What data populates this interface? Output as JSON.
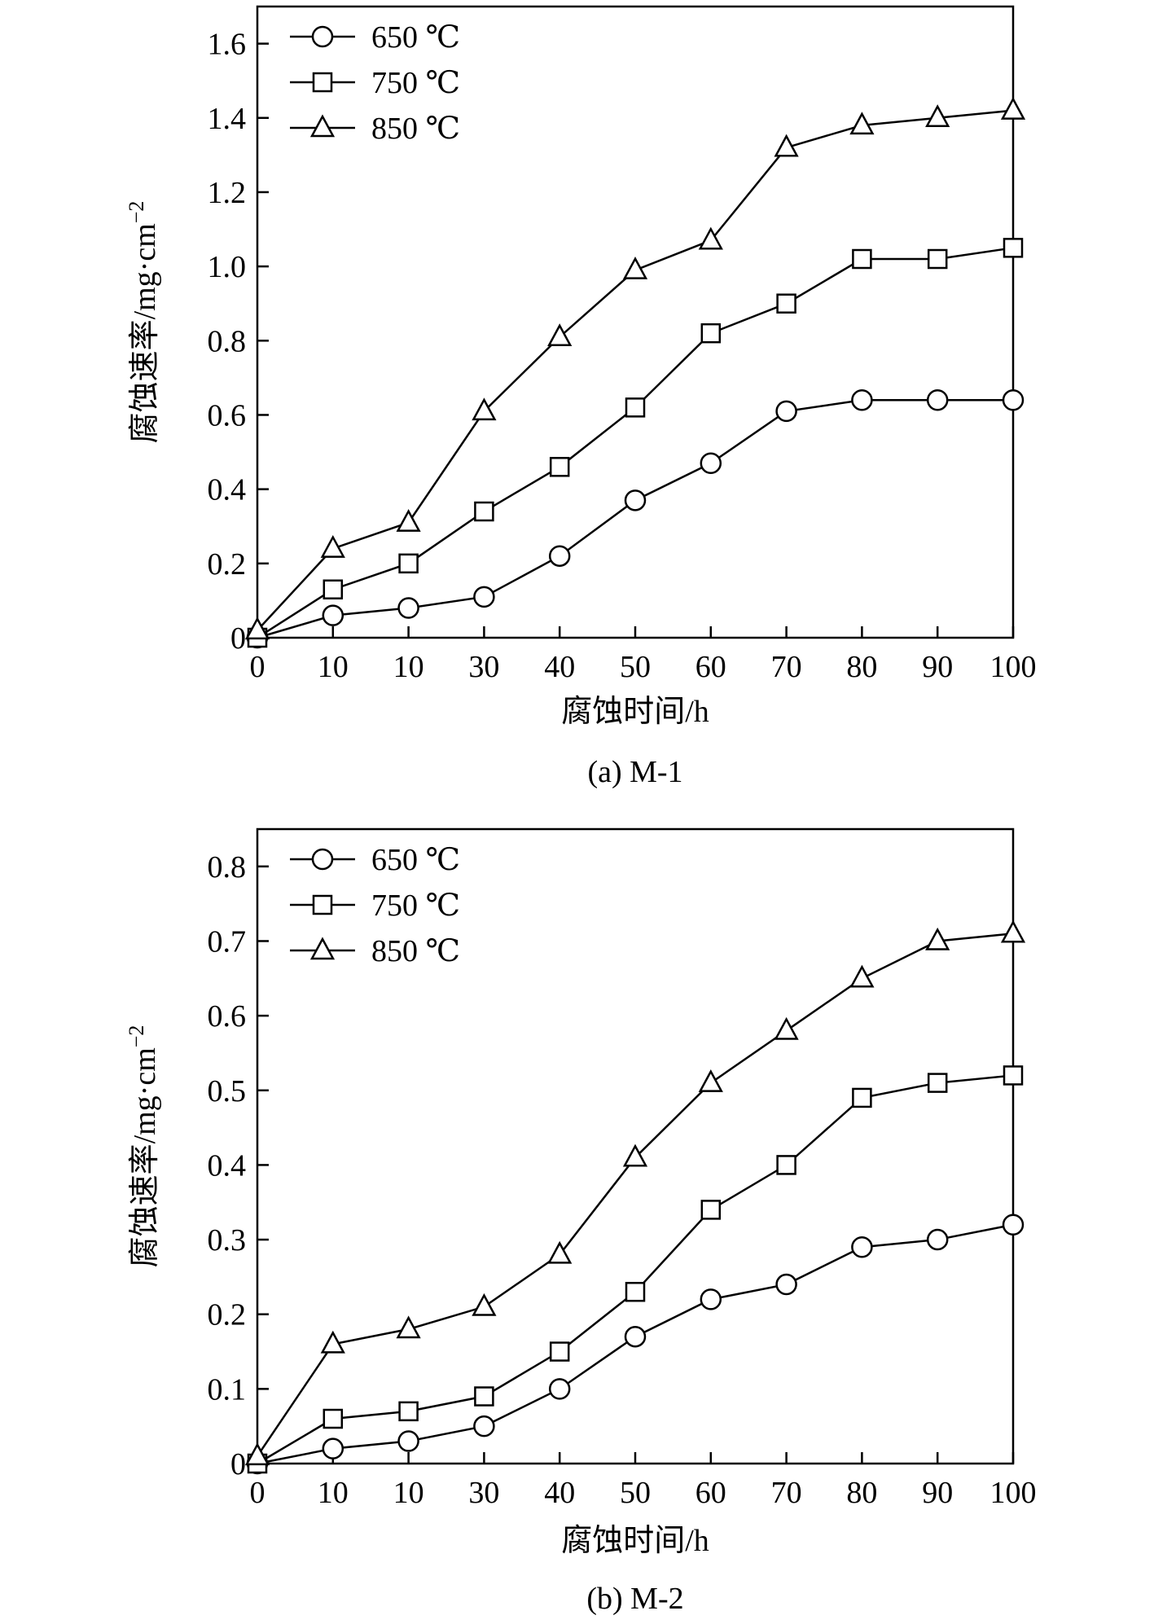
{
  "chart_data": [
    {
      "type": "line",
      "caption": "(a) M-1",
      "xlabel": "腐蚀时间/h",
      "ylabel": "腐蚀速率/mg·cm",
      "ylabel_sup": "−2",
      "categories": [
        "0",
        "10",
        "10",
        "30",
        "40",
        "50",
        "60",
        "70",
        "80",
        "90",
        "100"
      ],
      "ylim": [
        0,
        1.7
      ],
      "yticks": [
        0,
        0.2,
        0.4,
        0.6,
        0.8,
        1.0,
        1.2,
        1.4,
        1.6
      ],
      "ytick_labels": [
        "0",
        "0.2",
        "0.4",
        "0.6",
        "0.8",
        "1.0",
        "1.2",
        "1.4",
        "1.6"
      ],
      "legend_position": "top-left",
      "series": [
        {
          "name": "650 ℃",
          "marker": "circle",
          "values": [
            0,
            0.06,
            0.08,
            0.11,
            0.22,
            0.37,
            0.47,
            0.61,
            0.64,
            0.64,
            0.64
          ]
        },
        {
          "name": "750 ℃",
          "marker": "square",
          "values": [
            0,
            0.13,
            0.2,
            0.34,
            0.46,
            0.62,
            0.82,
            0.9,
            1.02,
            1.02,
            1.05
          ]
        },
        {
          "name": "850 ℃",
          "marker": "triangle",
          "values": [
            0.02,
            0.24,
            0.31,
            0.61,
            0.81,
            0.99,
            1.07,
            1.32,
            1.38,
            1.4,
            1.42
          ]
        }
      ]
    },
    {
      "type": "line",
      "caption": "(b) M-2",
      "xlabel": "腐蚀时间/h",
      "ylabel": "腐蚀速率/mg·cm",
      "ylabel_sup": "−2",
      "categories": [
        "0",
        "10",
        "10",
        "30",
        "40",
        "50",
        "60",
        "70",
        "80",
        "90",
        "100"
      ],
      "ylim": [
        0,
        0.85
      ],
      "yticks": [
        0,
        0.1,
        0.2,
        0.3,
        0.4,
        0.5,
        0.6,
        0.7,
        0.8
      ],
      "ytick_labels": [
        "0",
        "0.1",
        "0.2",
        "0.3",
        "0.4",
        "0.5",
        "0.6",
        "0.7",
        "0.8"
      ],
      "legend_position": "top-left",
      "series": [
        {
          "name": "650 ℃",
          "marker": "circle",
          "values": [
            0,
            0.02,
            0.03,
            0.05,
            0.1,
            0.17,
            0.22,
            0.24,
            0.29,
            0.3,
            0.32
          ]
        },
        {
          "name": "750 ℃",
          "marker": "square",
          "values": [
            0,
            0.06,
            0.07,
            0.09,
            0.15,
            0.23,
            0.34,
            0.4,
            0.49,
            0.51,
            0.52
          ]
        },
        {
          "name": "850 ℃",
          "marker": "triangle",
          "values": [
            0.01,
            0.16,
            0.18,
            0.21,
            0.28,
            0.41,
            0.51,
            0.58,
            0.65,
            0.7,
            0.71
          ]
        }
      ]
    }
  ]
}
